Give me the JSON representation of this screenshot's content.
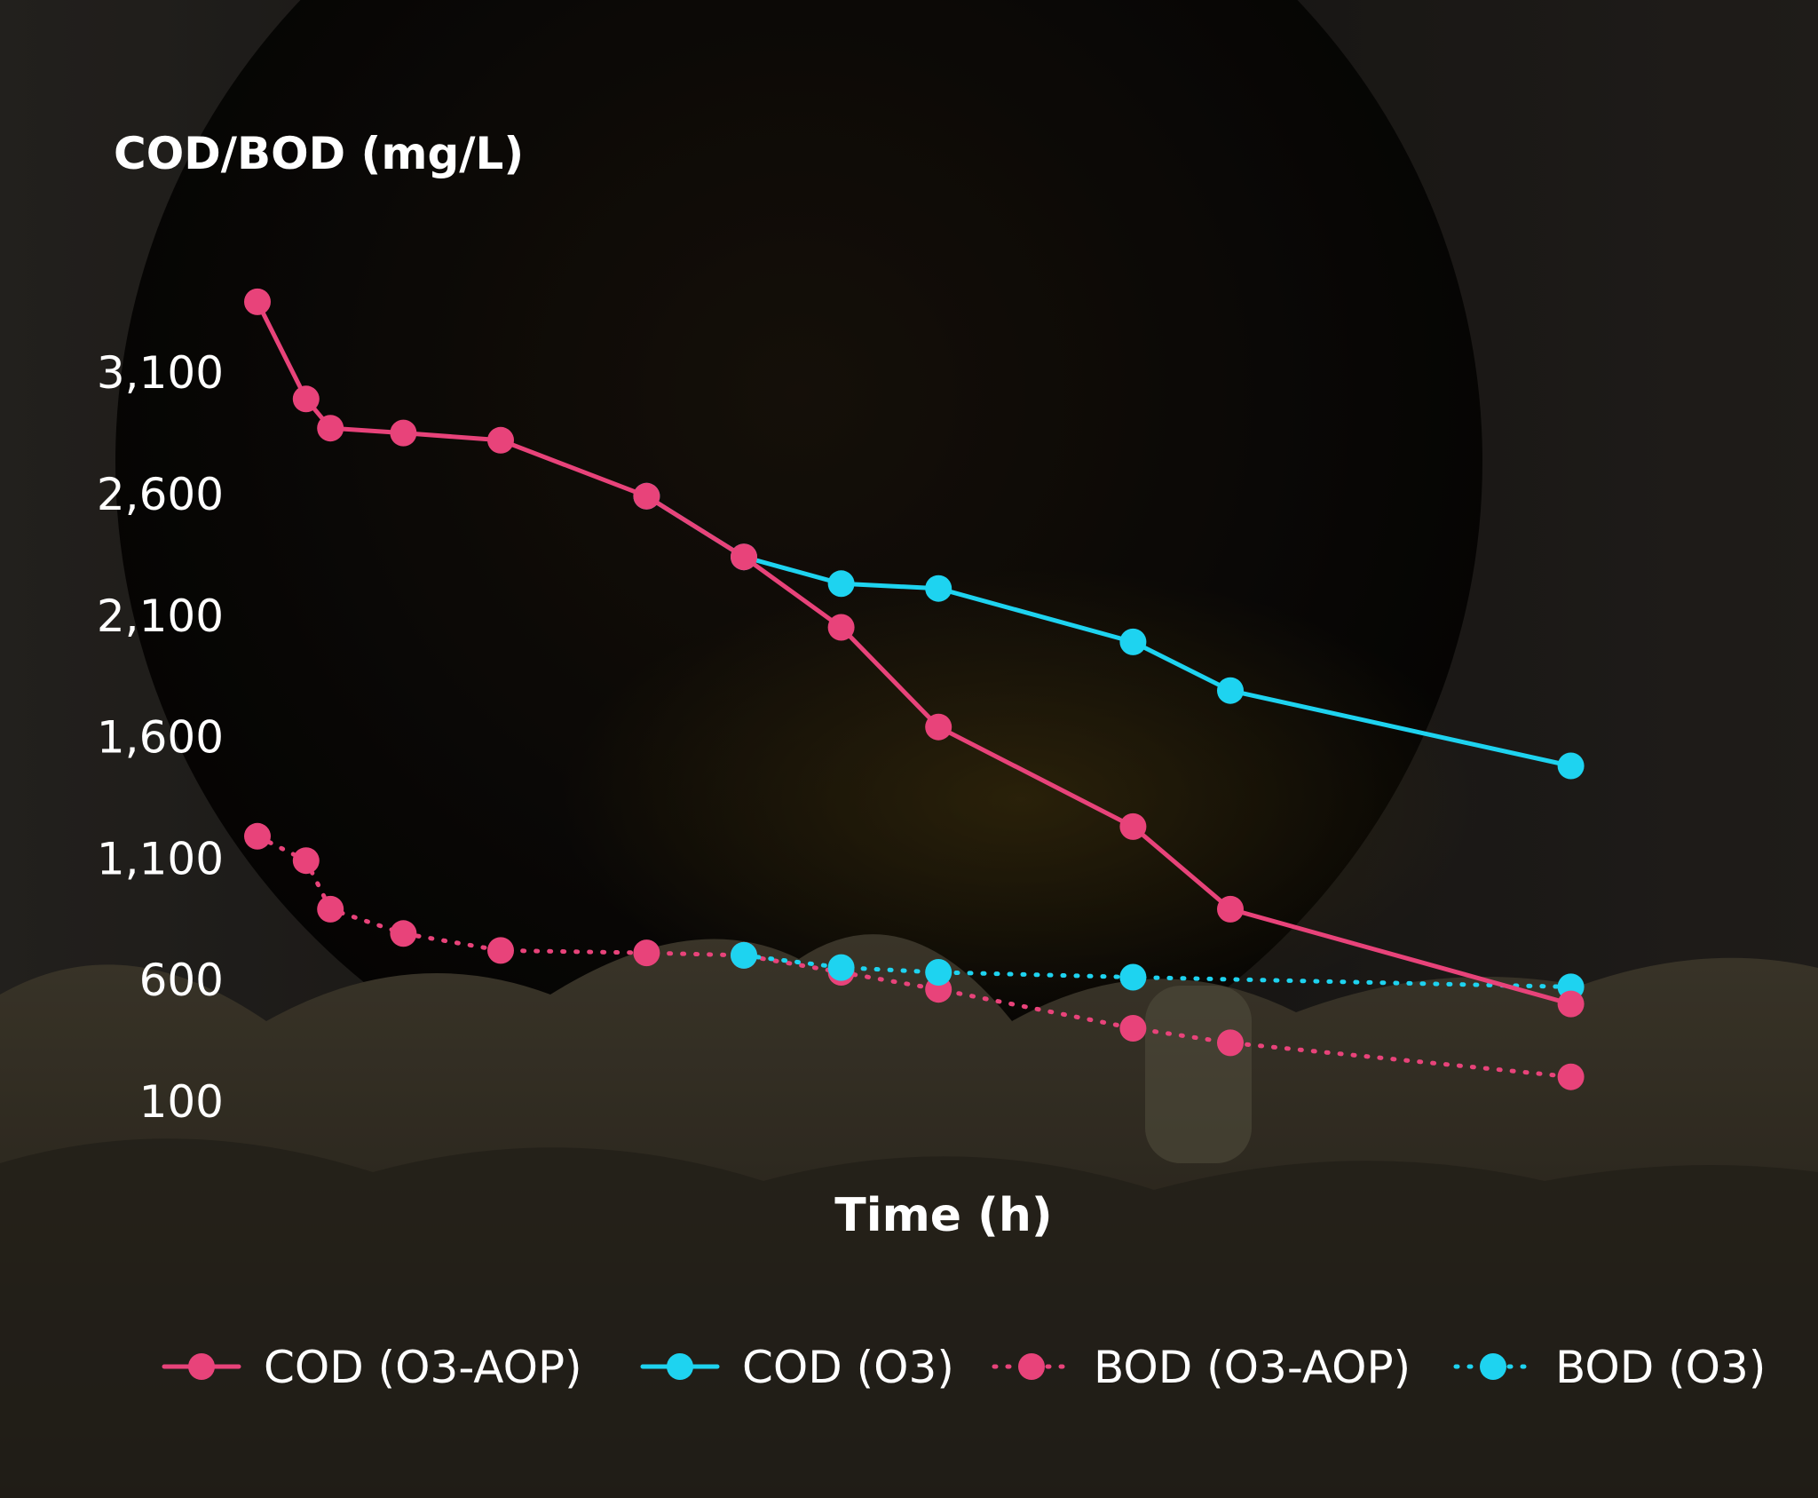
{
  "chart_data": {
    "type": "line",
    "title": "",
    "ylabel": "COD/BOD (mg/L)",
    "xlabel": "Time (h)",
    "yticks": [
      "3,100",
      "2,600",
      "2,100",
      "1,600",
      "1,100",
      "600",
      "100"
    ],
    "ytick_values": [
      3100,
      2600,
      2100,
      1600,
      1100,
      600,
      100
    ],
    "ylim": [
      100,
      3100
    ],
    "x": [
      0,
      0.5,
      0.75,
      1.5,
      2.5,
      4,
      5,
      6,
      7,
      9,
      10,
      13.5
    ],
    "series": [
      {
        "name": "COD (O3-AOP)",
        "color": "#e8437a",
        "style": "solid",
        "x": [
          0,
          0.5,
          0.75,
          1.5,
          2.5,
          4,
          5,
          6,
          7,
          9,
          10,
          13.5
        ],
        "values": [
          3390,
          2990,
          2870,
          2850,
          2820,
          2590,
          2340,
          2050,
          1640,
          1230,
          890,
          500
        ]
      },
      {
        "name": "COD (O3)",
        "color": "#1ed3f0",
        "style": "solid",
        "x": [
          4,
          5,
          6,
          7,
          9,
          10,
          13.5
        ],
        "values": [
          2590,
          2340,
          2230,
          2210,
          1990,
          1790,
          1480
        ]
      },
      {
        "name": "BOD (O3-AOP)",
        "color": "#e8437a",
        "style": "dotted",
        "x": [
          0,
          0.5,
          0.75,
          1.5,
          2.5,
          4,
          5,
          6,
          7,
          9,
          10,
          13.5
        ],
        "values": [
          1190,
          1090,
          890,
          790,
          720,
          710,
          700,
          630,
          560,
          400,
          340,
          200
        ]
      },
      {
        "name": "BOD (O3)",
        "color": "#1ed3f0",
        "style": "dotted",
        "x": [
          5,
          6,
          7,
          9,
          13.5
        ],
        "values": [
          700,
          650,
          630,
          610,
          570
        ]
      }
    ],
    "legend": [
      "COD (O3-AOP)",
      "COD (O3)",
      "BOD (O3-AOP)",
      "BOD (O3)"
    ],
    "legend_position": "bottom",
    "grid": false
  }
}
